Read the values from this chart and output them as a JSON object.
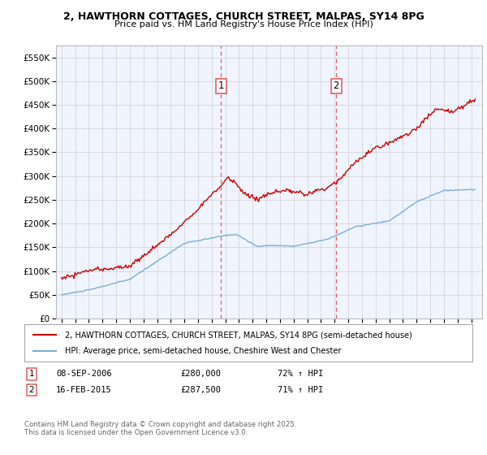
{
  "title": "2, HAWTHORN COTTAGES, CHURCH STREET, MALPAS, SY14 8PG",
  "subtitle": "Price paid vs. HM Land Registry's House Price Index (HPI)",
  "red_label": "2, HAWTHORN COTTAGES, CHURCH STREET, MALPAS, SY14 8PG (semi-detached house)",
  "blue_label": "HPI: Average price, semi-detached house, Cheshire West and Chester",
  "footer": "Contains HM Land Registry data © Crown copyright and database right 2025.\nThis data is licensed under the Open Government Licence v3.0.",
  "sale1_date": "08-SEP-2006",
  "sale1_price": "£280,000",
  "sale1_hpi": "72% ↑ HPI",
  "sale2_date": "16-FEB-2015",
  "sale2_price": "£287,500",
  "sale2_hpi": "71% ↑ HPI",
  "vline1_year": 2006.69,
  "vline2_year": 2015.12,
  "ylim": [
    0,
    575000
  ],
  "yticks": [
    0,
    50000,
    100000,
    150000,
    200000,
    250000,
    300000,
    350000,
    400000,
    450000,
    500000,
    550000
  ],
  "red_color": "#cc0000",
  "blue_color": "#7bafd4",
  "vline_color": "#e06060",
  "grid_color": "#d0d0d0",
  "plot_bg": "#f0f4ff"
}
